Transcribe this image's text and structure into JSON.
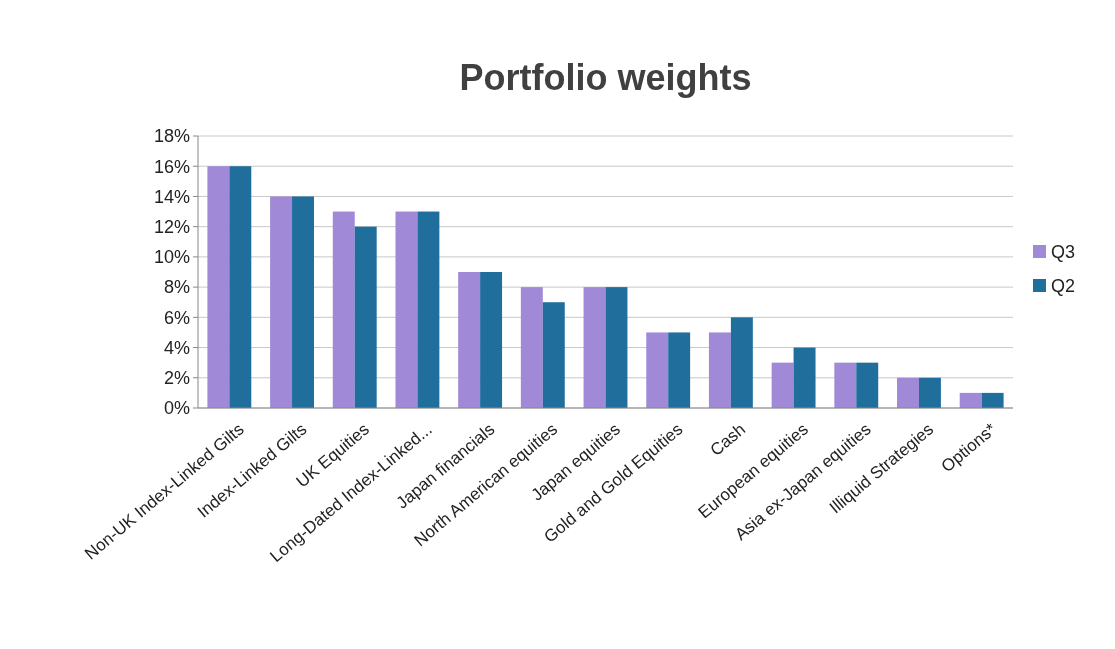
{
  "chart_data": {
    "type": "bar",
    "title": "Portfolio weights",
    "categories": [
      "Non-UK Index-Linked Gilts",
      "Index-Linked Gilts",
      "UK Equities",
      "Long-Dated Index-Linked...",
      "Japan financials",
      "North American equities",
      "Japan equities",
      "Gold and Gold Equities",
      "Cash",
      "European equities",
      "Asia ex-Japan equities",
      "Illiquid Strategies",
      "Options*"
    ],
    "series": [
      {
        "name": "Q3",
        "color": "#a08ad8",
        "values": [
          16,
          14,
          13,
          13,
          9,
          8,
          8,
          5,
          5,
          3,
          3,
          2,
          1
        ]
      },
      {
        "name": "Q2",
        "color": "#1f6e9c",
        "values": [
          16,
          14,
          12,
          13,
          9,
          7,
          8,
          5,
          6,
          4,
          3,
          2,
          1
        ]
      }
    ],
    "ylim": [
      0,
      18
    ],
    "yticks": [
      {
        "value": 0,
        "label": "0%"
      },
      {
        "value": 2,
        "label": "2%"
      },
      {
        "value": 4,
        "label": "4%"
      },
      {
        "value": 6,
        "label": "6%"
      },
      {
        "value": 8,
        "label": "8%"
      },
      {
        "value": 10,
        "label": "10%"
      },
      {
        "value": 12,
        "label": "12%"
      },
      {
        "value": 14,
        "label": "14%"
      },
      {
        "value": 16,
        "label": "16%"
      },
      {
        "value": 18,
        "label": "18%"
      }
    ],
    "grid": "y",
    "legend": "right"
  }
}
